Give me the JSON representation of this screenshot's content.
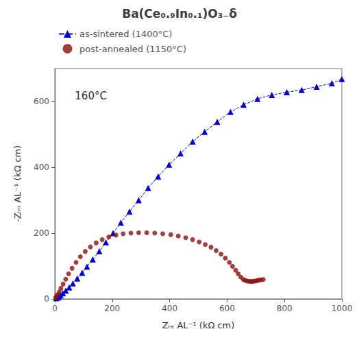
{
  "chart_data": {
    "type": "line",
    "title": "Ba(Ce₀.₉In₀.₁)O₃₋δ",
    "xlabel": "Zᵣₑ AL⁻¹ (kΩ cm)",
    "ylabel": "-Zᵢₘ AL⁻¹ (kΩ cm)",
    "annotations": [
      "160°C"
    ],
    "xlim": [
      0,
      1000
    ],
    "ylim": [
      0,
      700
    ],
    "xticks": [
      0,
      200,
      400,
      600,
      800,
      1000
    ],
    "yticks": [
      0,
      200,
      400,
      600
    ],
    "grid": false,
    "legend": "top left",
    "series": [
      {
        "name": "as-sintered (1400°C)",
        "type": "line",
        "color": "#0000CC",
        "marker": "triangle",
        "line_style": "dashed",
        "x": [
          5,
          10,
          15,
          20,
          28,
          38,
          50,
          63,
          78,
          95,
          112,
          132,
          155,
          178,
          203,
          230,
          260,
          292,
          325,
          360,
          398,
          438,
          480,
          522,
          566,
          612,
          658,
          706,
          756,
          808,
          860,
          912,
          965,
          1000
        ],
        "values": [
          2,
          4,
          7,
          11,
          17,
          25,
          35,
          47,
          62,
          79,
          98,
          120,
          145,
          172,
          200,
          232,
          265,
          300,
          337,
          372,
          408,
          442,
          478,
          508,
          538,
          568,
          590,
          608,
          620,
          628,
          635,
          645,
          655,
          668
        ]
      },
      {
        "name": "post-annealed (1150°C)",
        "type": "scatter",
        "color": "#8B1010",
        "marker": "circle",
        "x": [
          3,
          6,
          10,
          15,
          21,
          29,
          38,
          48,
          60,
          74,
          89,
          106,
          124,
          144,
          165,
          188,
          213,
          238,
          265,
          292,
          320,
          348,
          376,
          404,
          430,
          456,
          480,
          503,
          524,
          544,
          562,
          579,
          594,
          608,
          619,
          630,
          639,
          648,
          657,
          664,
          671,
          678,
          684,
          690,
          696,
          703,
          710,
          718,
          726
        ],
        "values": [
          3,
          7,
          13,
          21,
          32,
          45,
          60,
          76,
          93,
          111,
          128,
          144,
          158,
          170,
          180,
          188,
          194,
          198,
          200,
          201,
          201,
          200,
          198,
          195,
          191,
          186,
          180,
          173,
          165,
          157,
          147,
          136,
          124,
          111,
          99,
          87,
          76,
          66,
          59,
          56,
          54,
          53,
          53,
          53,
          54,
          55,
          57,
          58,
          59
        ]
      }
    ]
  }
}
